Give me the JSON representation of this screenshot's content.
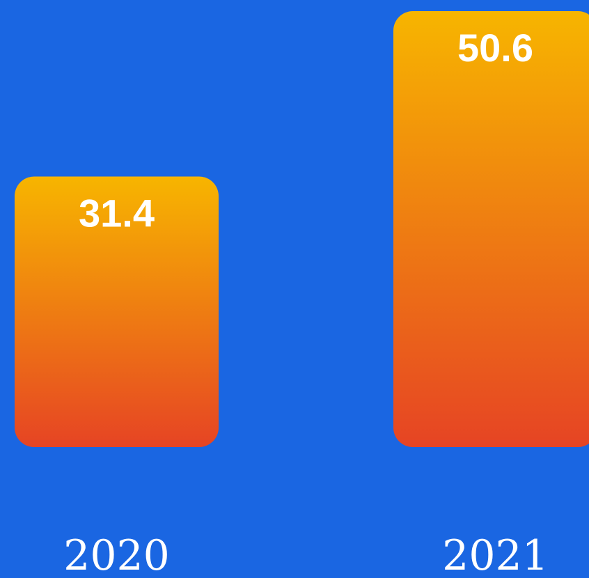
{
  "chart_data": {
    "type": "bar",
    "categories": [
      "2020",
      "2021"
    ],
    "values": [
      31.4,
      50.6
    ],
    "title": "",
    "xlabel": "",
    "ylabel": "",
    "ylim": [
      0,
      50.6
    ],
    "grid": false,
    "legend": "none",
    "data_labels": true
  },
  "colors": {
    "background": "#1a66e2",
    "bar_top": "#f7b500",
    "bar_bottom": "#e64424",
    "label_text": "#ffffff"
  }
}
